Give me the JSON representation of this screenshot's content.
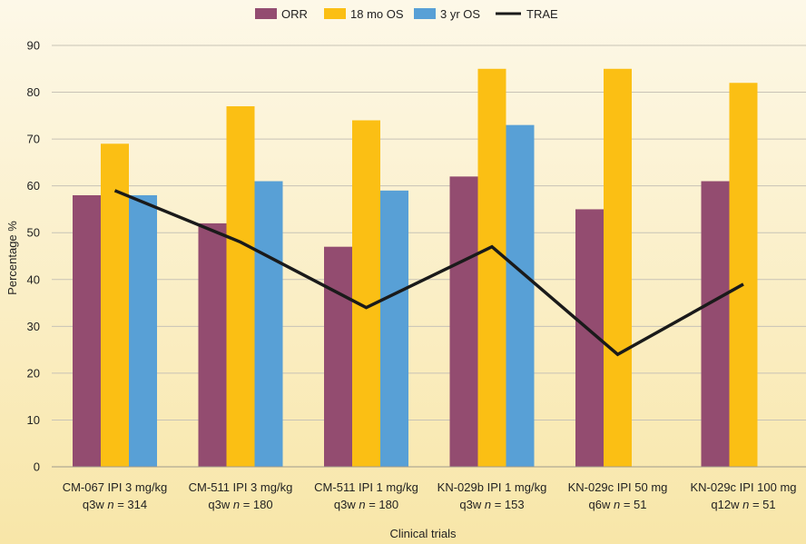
{
  "chart_data": {
    "type": "bar",
    "categories": [
      [
        "CM-067 IPI 3 mg/kg",
        "q3w n = 314"
      ],
      [
        "CM-511 IPI 3 mg/kg",
        "q3w n = 180"
      ],
      [
        "CM-511 IPI 1 mg/kg",
        "q3w n = 180"
      ],
      [
        "KN-029b IPI 1 mg/kg",
        "q3w n = 153"
      ],
      [
        "KN-029c IPI 50 mg",
        "q6w n = 51"
      ],
      [
        "KN-029c IPI 100 mg",
        "q12w n = 51"
      ]
    ],
    "series": [
      {
        "name": "ORR",
        "type": "bar",
        "color": "#934c70",
        "values": [
          58,
          52,
          47,
          62,
          55,
          61
        ]
      },
      {
        "name": "18 mo OS",
        "type": "bar",
        "color": "#fbbf14",
        "values": [
          69,
          77,
          74,
          85,
          85,
          82
        ]
      },
      {
        "name": "3 yr OS",
        "type": "bar",
        "color": "#58a0d6",
        "values": [
          58,
          61,
          59,
          73,
          null,
          null
        ]
      },
      {
        "name": "TRAE",
        "type": "line",
        "color": "#1a1a1a",
        "values": [
          59,
          48,
          34,
          47,
          24,
          39
        ]
      }
    ],
    "xlabel": "Clinical trials",
    "ylabel": "Percentage %",
    "ylim": [
      0,
      90
    ],
    "yticks": [
      0,
      10,
      20,
      30,
      40,
      50,
      60,
      70,
      80,
      90
    ],
    "grid": true,
    "legend_position": "top-center"
  }
}
